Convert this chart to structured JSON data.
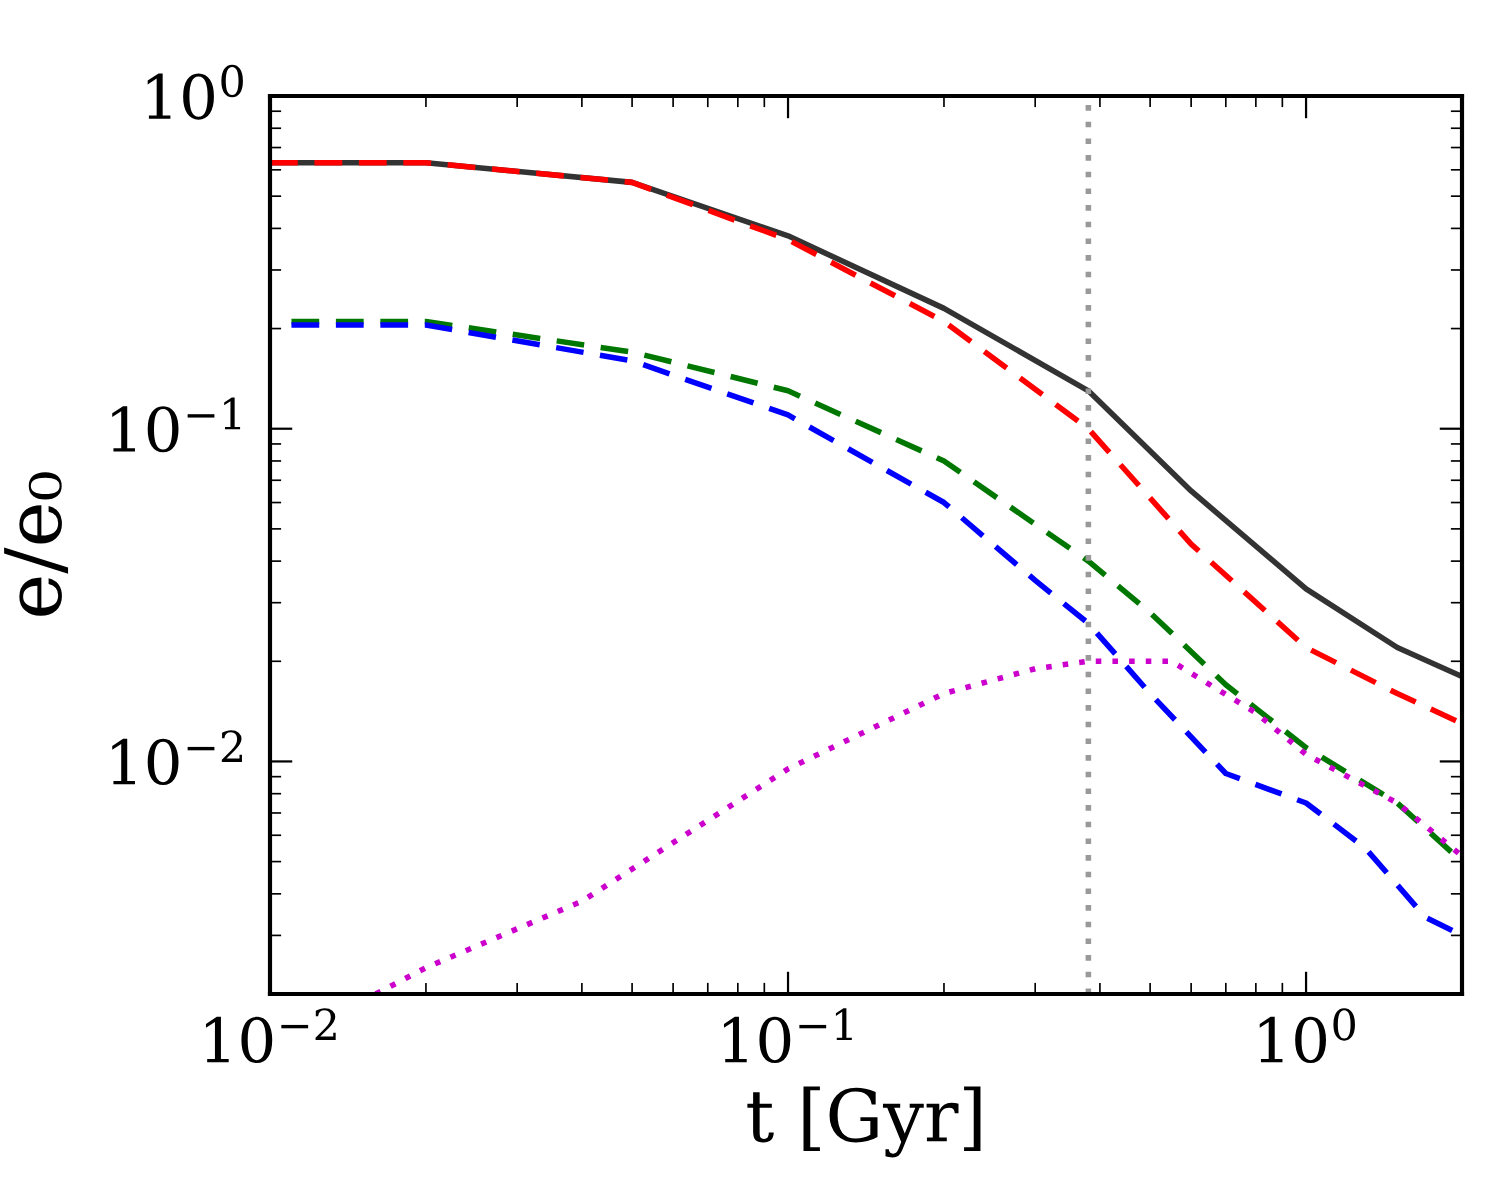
{
  "chart_data": {
    "type": "line",
    "xlabel": "t [Gyr]",
    "ylabel": "e/e₀",
    "log": "xy",
    "xlim": [
      0.01,
      2
    ],
    "ylim": [
      0.002,
      1
    ],
    "xticks": [
      {
        "value": 0.01,
        "label": "10$^{−2}$"
      },
      {
        "value": 0.1,
        "label": "10$^{−1}$"
      },
      {
        "value": 1,
        "label": "10$^{0}$"
      }
    ],
    "yticks": [
      {
        "value": 0.01,
        "label": "10$^{−2}$"
      },
      {
        "value": 0.1,
        "label": "10$^{−1}$"
      },
      {
        "value": 1,
        "label": "10$^{0}$"
      }
    ],
    "grid": false,
    "legend": false,
    "ref_lines": [
      {
        "axis": "x",
        "value": 0.38,
        "color": "#999999",
        "line_style": "dotted"
      }
    ],
    "series": [
      {
        "color": "#333333",
        "line_style": "solid",
        "x": [
          0.01,
          0.02,
          0.05,
          0.1,
          0.2,
          0.38,
          0.6,
          1.0,
          1.5,
          2.0
        ],
        "values": [
          0.63,
          0.63,
          0.55,
          0.38,
          0.23,
          0.13,
          0.065,
          0.033,
          0.022,
          0.018
        ]
      },
      {
        "color": "#ff0000",
        "line_style": "dashed",
        "x": [
          0.01,
          0.02,
          0.05,
          0.1,
          0.2,
          0.38,
          0.6,
          1.0,
          1.5,
          2.0
        ],
        "values": [
          0.63,
          0.63,
          0.55,
          0.37,
          0.21,
          0.1,
          0.045,
          0.022,
          0.016,
          0.013
        ]
      },
      {
        "color": "#007700",
        "line_style": "dashed",
        "x": [
          0.011,
          0.02,
          0.05,
          0.1,
          0.2,
          0.38,
          0.5,
          0.7,
          1.0,
          1.5,
          2.0
        ],
        "values": [
          0.21,
          0.21,
          0.17,
          0.13,
          0.08,
          0.04,
          0.028,
          0.017,
          0.011,
          0.0075,
          0.005
        ]
      },
      {
        "color": "#0000ff",
        "line_style": "dashed",
        "x": [
          0.011,
          0.02,
          0.05,
          0.1,
          0.2,
          0.3,
          0.38,
          0.5,
          0.7,
          1.0,
          1.3,
          1.7,
          2.0
        ],
        "values": [
          0.205,
          0.205,
          0.16,
          0.11,
          0.06,
          0.035,
          0.026,
          0.016,
          0.0092,
          0.0075,
          0.0055,
          0.0034,
          0.003
        ]
      },
      {
        "color": "#cc00cc",
        "line_style": "dotted",
        "x": [
          0.016,
          0.02,
          0.04,
          0.1,
          0.2,
          0.3,
          0.38,
          0.55,
          0.8,
          1.0,
          1.5,
          2.0
        ],
        "values": [
          0.002,
          0.0024,
          0.0038,
          0.0095,
          0.016,
          0.019,
          0.02,
          0.02,
          0.014,
          0.0105,
          0.0075,
          0.0052
        ]
      }
    ]
  }
}
